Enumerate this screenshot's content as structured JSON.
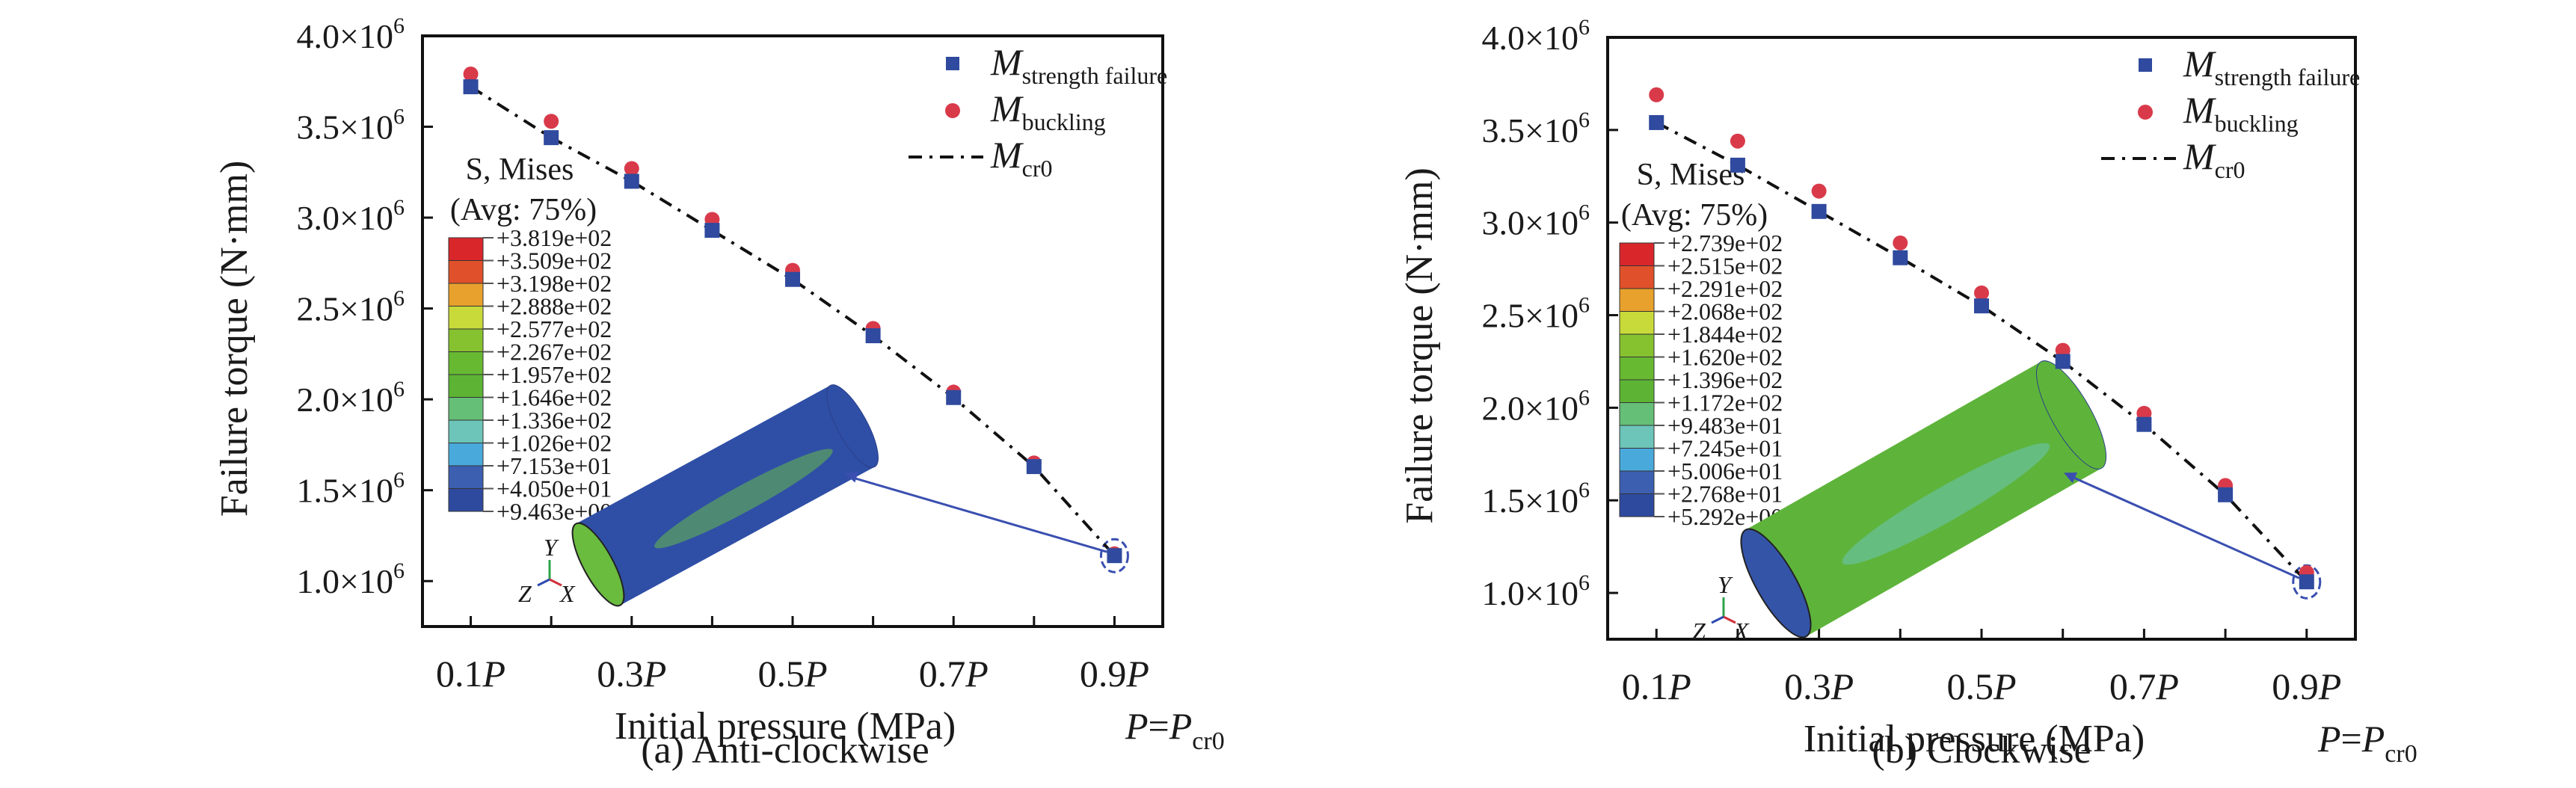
{
  "figure": {
    "panels": [
      {
        "caption": "(a) Anti-clockwise",
        "contour": {
          "title": "S, Mises",
          "subtitle": "(Avg: 75%)",
          "levels": [
            "+3.819e+02",
            "+3.509e+02",
            "+3.198e+02",
            "+2.888e+02",
            "+2.577e+02",
            "+2.267e+02",
            "+1.957e+02",
            "+1.646e+02",
            "+1.336e+02",
            "+1.026e+02",
            "+7.153e+01",
            "+4.050e+01",
            "+9.463e+00"
          ],
          "colors": [
            "#d9262b",
            "#e0502a",
            "#e8a12c",
            "#c8da3a",
            "#86c22f",
            "#68b932",
            "#5db434",
            "#66bf76",
            "#6cc5b8",
            "#4aa9db",
            "#3c5fb0",
            "#2e4a9e"
          ],
          "cylinder_color": "#2f4fa6",
          "cylinder_highlight": "#67bb49"
        }
      },
      {
        "caption": "(b) Clockwise",
        "contour": {
          "title": "S, Mises",
          "subtitle": "(Avg: 75%)",
          "levels": [
            "+2.739e+02",
            "+2.515e+02",
            "+2.291e+02",
            "+2.068e+02",
            "+1.844e+02",
            "+1.620e+02",
            "+1.396e+02",
            "+1.172e+02",
            "+9.483e+01",
            "+7.245e+01",
            "+5.006e+01",
            "+2.768e+01",
            "+5.292e+00"
          ],
          "colors": [
            "#d9262b",
            "#e0502a",
            "#e8a12c",
            "#c8da3a",
            "#86c22f",
            "#68b932",
            "#5db434",
            "#66bf76",
            "#6cc5b8",
            "#4aa9db",
            "#3c5fb0",
            "#2e4a9e"
          ],
          "cylinder_color": "#5eb43a",
          "cylinder_highlight": "#6cc5b8"
        }
      }
    ],
    "triad": {
      "y": "Y",
      "z": "Z",
      "x": "X"
    },
    "pcr_label": {
      "lhs": "P",
      "eq": "=",
      "rhs": "P",
      "sub": "cr0"
    }
  },
  "chart_data": [
    {
      "type": "scatter",
      "title": "(a) Anti-clockwise",
      "xlabel": "Initial pressure (MPa)",
      "ylabel": "Failure torque (N·mm)",
      "x": [
        0.1,
        0.2,
        0.3,
        0.4,
        0.5,
        0.6,
        0.7,
        0.8,
        0.9
      ],
      "xtick_values": [
        0.1,
        0.3,
        0.5,
        0.7,
        0.9
      ],
      "xtick_labels": [
        "0.1",
        "0.3",
        "0.5",
        "0.7",
        "0.9"
      ],
      "xtick_suffix": "P",
      "xlim": [
        0.04,
        0.96
      ],
      "ylim": [
        750000.0,
        4000000.0
      ],
      "ytick_values": [
        1000000.0,
        1500000.0,
        2000000.0,
        2500000.0,
        3000000.0,
        3500000.0,
        4000000.0
      ],
      "ytick_labels": [
        "1.0×10",
        "1.5×10",
        "2.0×10",
        "2.5×10",
        "3.0×10",
        "3.5×10",
        "4.0×10"
      ],
      "ytick_exponent": "6",
      "grid": false,
      "legend_position": "top-right",
      "series": [
        {
          "name": "M_strength failure",
          "label_main": "M",
          "label_sub": "strength failure",
          "marker": "square",
          "color": "#2f4a9e",
          "values": [
            3720000.0,
            3440000.0,
            3200000.0,
            2930000.0,
            2660000.0,
            2350000.0,
            2010000.0,
            1630000.0,
            1140000.0
          ]
        },
        {
          "name": "M_buckling",
          "label_main": "M",
          "label_sub": "buckling",
          "marker": "circle",
          "color": "#d93a4a",
          "values": [
            3790000.0,
            3530000.0,
            3270000.0,
            2990000.0,
            2710000.0,
            2390000.0,
            2040000.0,
            1650000.0,
            1150000.0
          ]
        },
        {
          "name": "M_cr0",
          "label_main": "M",
          "label_sub": "cr0",
          "marker": "dashdot-line",
          "color": "#111111",
          "values": [
            3720000.0,
            3440000.0,
            3200000.0,
            2930000.0,
            2660000.0,
            2350000.0,
            2010000.0,
            1630000.0,
            1140000.0
          ]
        }
      ]
    },
    {
      "type": "scatter",
      "title": "(b) Clockwise",
      "xlabel": "Initial pressure (MPa)",
      "ylabel": "Failure torque (N·mm)",
      "x": [
        0.1,
        0.2,
        0.3,
        0.4,
        0.5,
        0.6,
        0.7,
        0.8,
        0.9
      ],
      "xtick_values": [
        0.1,
        0.3,
        0.5,
        0.7,
        0.9
      ],
      "xtick_labels": [
        "0.1",
        "0.3",
        "0.5",
        "0.7",
        "0.9"
      ],
      "xtick_suffix": "P",
      "xlim": [
        0.04,
        0.96
      ],
      "ylim": [
        750000.0,
        4000000.0
      ],
      "ytick_values": [
        1000000.0,
        1500000.0,
        2000000.0,
        2500000.0,
        3000000.0,
        3500000.0,
        4000000.0
      ],
      "ytick_labels": [
        "1.0×10",
        "1.5×10",
        "2.0×10",
        "2.5×10",
        "3.0×10",
        "3.5×10",
        "4.0×10"
      ],
      "ytick_exponent": "6",
      "grid": false,
      "legend_position": "top-right",
      "series": [
        {
          "name": "M_strength failure",
          "label_main": "M",
          "label_sub": "strength failure",
          "marker": "square",
          "color": "#2f4a9e",
          "values": [
            3540000.0,
            3310000.0,
            3060000.0,
            2810000.0,
            2550000.0,
            2250000.0,
            1910000.0,
            1530000.0,
            1060000.0
          ]
        },
        {
          "name": "M_buckling",
          "label_main": "M",
          "label_sub": "buckling",
          "marker": "circle",
          "color": "#d93a4a",
          "values": [
            3690000.0,
            3440000.0,
            3170000.0,
            2890000.0,
            2620000.0,
            2310000.0,
            1970000.0,
            1580000.0,
            1110000.0
          ]
        },
        {
          "name": "M_cr0",
          "label_main": "M",
          "label_sub": "cr0",
          "marker": "dashdot-line",
          "color": "#111111",
          "values": [
            3540000.0,
            3310000.0,
            3060000.0,
            2810000.0,
            2550000.0,
            2250000.0,
            1910000.0,
            1530000.0,
            1060000.0
          ]
        }
      ]
    }
  ]
}
